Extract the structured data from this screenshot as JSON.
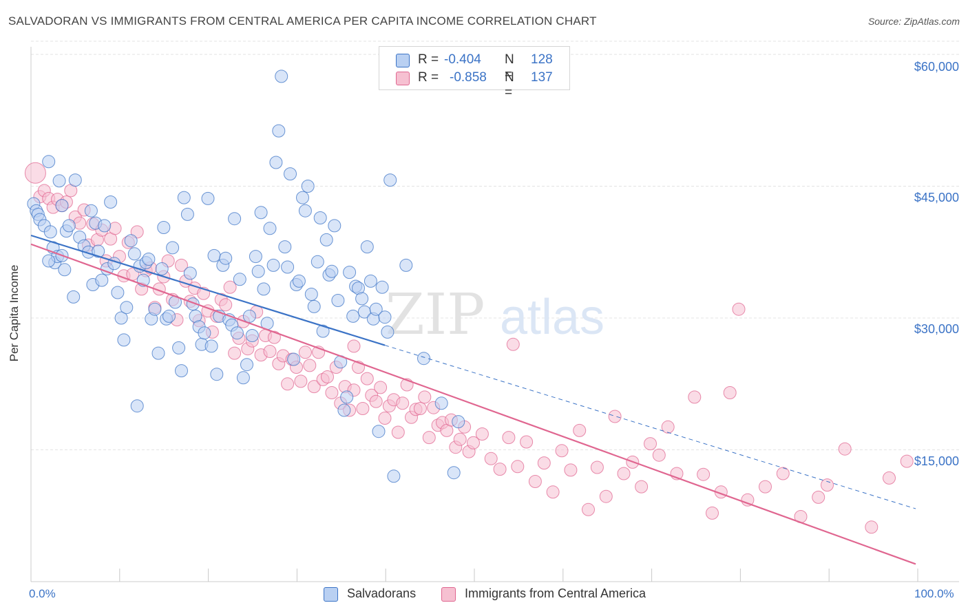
{
  "title": "SALVADORAN VS IMMIGRANTS FROM CENTRAL AMERICA PER CAPITA INCOME CORRELATION CHART",
  "source": "Source: ZipAtlas.com",
  "watermark": {
    "zip": "ZIP",
    "atlas": "atlas"
  },
  "colors": {
    "blue": "#3b73c6",
    "blue_fill": "#b9d0f2",
    "pink": "#e06690",
    "pink_fill": "#f6c0d1",
    "grid": "#e3e3e3"
  },
  "legend": {
    "r_label": "R = ",
    "n_label": "N = ",
    "blue": {
      "r": "-0.404",
      "n": "128"
    },
    "pink": {
      "r": "-0.858",
      "n": "137"
    }
  },
  "chart_data": {
    "type": "scatter",
    "title": "SALVADORAN VS IMMIGRANTS FROM CENTRAL AMERICA PER CAPITA INCOME CORRELATION CHART",
    "xlabel": "",
    "ylabel": "Per Capita Income",
    "x_tick_labels": [
      "0.0%",
      "100.0%"
    ],
    "y_tick_labels": [
      "$15,000",
      "$30,000",
      "$45,000",
      "$60,000"
    ],
    "y_ticks": [
      15000,
      30000,
      45000,
      60000
    ],
    "xlim": [
      0,
      100
    ],
    "ylim": [
      0,
      61500
    ],
    "grid": true,
    "legend_position": "bottom",
    "series": [
      {
        "name": "Salvadorans",
        "color": "#3b73c6",
        "r": -0.404,
        "n": 128,
        "trend": {
          "solid": [
            [
              0,
              39400
            ],
            [
              40,
              26900
            ]
          ],
          "dashed": [
            [
              40,
              26900
            ],
            [
              100,
              8300
            ]
          ]
        },
        "points": [
          [
            0.3,
            43000
          ],
          [
            0.6,
            42200
          ],
          [
            0.8,
            41800
          ],
          [
            1,
            41200
          ],
          [
            1.5,
            40500
          ],
          [
            2,
            47800
          ],
          [
            2.2,
            39800
          ],
          [
            2.5,
            38000
          ],
          [
            2.7,
            36300
          ],
          [
            3,
            37000
          ],
          [
            3.2,
            45600
          ],
          [
            3.5,
            42800
          ],
          [
            3.8,
            35500
          ],
          [
            4,
            39900
          ],
          [
            4.3,
            40500
          ],
          [
            4.8,
            32400
          ],
          [
            5,
            45700
          ],
          [
            5.5,
            39200
          ],
          [
            6,
            38200
          ],
          [
            6.5,
            37500
          ],
          [
            6.8,
            42200
          ],
          [
            7,
            33800
          ],
          [
            7.3,
            40800
          ],
          [
            7.6,
            37600
          ],
          [
            8,
            34300
          ],
          [
            8.3,
            40500
          ],
          [
            8.6,
            35600
          ],
          [
            9,
            43200
          ],
          [
            9.4,
            36200
          ],
          [
            9.8,
            32900
          ],
          [
            10.2,
            30000
          ],
          [
            10.5,
            27500
          ],
          [
            10.8,
            31200
          ],
          [
            11.3,
            38800
          ],
          [
            11.7,
            37300
          ],
          [
            12,
            20000
          ],
          [
            12.3,
            35900
          ],
          [
            12.7,
            34300
          ],
          [
            13,
            36300
          ],
          [
            13.3,
            36700
          ],
          [
            13.6,
            29900
          ],
          [
            14,
            31000
          ],
          [
            14.4,
            26000
          ],
          [
            14.8,
            35600
          ],
          [
            15,
            40300
          ],
          [
            15.3,
            29900
          ],
          [
            15.6,
            30200
          ],
          [
            16,
            38000
          ],
          [
            16.3,
            31800
          ],
          [
            16.7,
            26600
          ],
          [
            17,
            24000
          ],
          [
            17.3,
            43700
          ],
          [
            17.7,
            41800
          ],
          [
            18,
            35100
          ],
          [
            18.3,
            31600
          ],
          [
            18.6,
            30200
          ],
          [
            19,
            29000
          ],
          [
            19.3,
            27000
          ],
          [
            19.6,
            28300
          ],
          [
            20,
            43600
          ],
          [
            20.4,
            26800
          ],
          [
            20.7,
            37100
          ],
          [
            21,
            23600
          ],
          [
            21.3,
            30200
          ],
          [
            21.7,
            36000
          ],
          [
            22,
            36800
          ],
          [
            22.4,
            29800
          ],
          [
            22.7,
            29200
          ],
          [
            23,
            41300
          ],
          [
            23.3,
            28300
          ],
          [
            23.6,
            34400
          ],
          [
            24,
            23200
          ],
          [
            24.4,
            24700
          ],
          [
            24.7,
            30200
          ],
          [
            25,
            28000
          ],
          [
            25.4,
            37000
          ],
          [
            25.7,
            35300
          ],
          [
            26,
            42000
          ],
          [
            26.3,
            33300
          ],
          [
            26.7,
            29400
          ],
          [
            27,
            40200
          ],
          [
            27.4,
            36000
          ],
          [
            27.7,
            47700
          ],
          [
            28,
            51300
          ],
          [
            28.3,
            57500
          ],
          [
            28.7,
            38100
          ],
          [
            29,
            35800
          ],
          [
            29.3,
            46400
          ],
          [
            29.7,
            25300
          ],
          [
            30,
            33800
          ],
          [
            30.3,
            34200
          ],
          [
            30.7,
            43700
          ],
          [
            31,
            42200
          ],
          [
            31.3,
            45000
          ],
          [
            31.7,
            32700
          ],
          [
            32,
            31300
          ],
          [
            32.4,
            36400
          ],
          [
            32.7,
            41400
          ],
          [
            33,
            28500
          ],
          [
            33.4,
            38900
          ],
          [
            33.7,
            34900
          ],
          [
            34,
            35300
          ],
          [
            34.3,
            40500
          ],
          [
            34.7,
            32000
          ],
          [
            35,
            25000
          ],
          [
            35.4,
            19500
          ],
          [
            35.7,
            21000
          ],
          [
            36,
            35200
          ],
          [
            36.4,
            30200
          ],
          [
            36.7,
            33600
          ],
          [
            37,
            33400
          ],
          [
            37.4,
            32200
          ],
          [
            37.7,
            30700
          ],
          [
            38,
            38100
          ],
          [
            38.4,
            34200
          ],
          [
            38.7,
            29900
          ],
          [
            39,
            31000
          ],
          [
            39.3,
            17100
          ],
          [
            39.7,
            33500
          ],
          [
            40,
            30100
          ],
          [
            40.3,
            28400
          ],
          [
            41,
            12000
          ],
          [
            40.6,
            45700
          ],
          [
            42.4,
            36000
          ],
          [
            44.4,
            25400
          ],
          [
            46.4,
            20300
          ],
          [
            47.8,
            12400
          ],
          [
            48.3,
            18200
          ],
          [
            3.5,
            37100
          ],
          [
            2,
            36500
          ]
        ]
      },
      {
        "name": "Immigrants from Central America",
        "color": "#e06690",
        "r": -0.858,
        "n": 137,
        "trend": {
          "solid": [
            [
              0,
              38400
            ],
            [
              100,
              2000
            ]
          ]
        },
        "points": [
          [
            0.5,
            46500
          ],
          [
            1,
            43800
          ],
          [
            1.5,
            44500
          ],
          [
            2,
            43600
          ],
          [
            2.5,
            42600
          ],
          [
            3,
            43500
          ],
          [
            3.5,
            42800
          ],
          [
            4,
            43200
          ],
          [
            4.5,
            44500
          ],
          [
            5,
            41500
          ],
          [
            5.5,
            40800
          ],
          [
            6,
            42300
          ],
          [
            6.5,
            38300
          ],
          [
            7,
            40700
          ],
          [
            7.5,
            38900
          ],
          [
            8,
            40000
          ],
          [
            8.5,
            36500
          ],
          [
            9,
            39000
          ],
          [
            9.5,
            40200
          ],
          [
            10,
            37000
          ],
          [
            10.5,
            34800
          ],
          [
            11,
            38600
          ],
          [
            11.5,
            35000
          ],
          [
            12,
            39800
          ],
          [
            12.5,
            33300
          ],
          [
            13,
            35400
          ],
          [
            13.5,
            35700
          ],
          [
            14,
            31200
          ],
          [
            14.5,
            33300
          ],
          [
            15,
            34700
          ],
          [
            15.5,
            36500
          ],
          [
            16,
            32100
          ],
          [
            16.5,
            29800
          ],
          [
            17,
            36000
          ],
          [
            17.5,
            34200
          ],
          [
            18,
            31900
          ],
          [
            18.5,
            33400
          ],
          [
            19,
            29700
          ],
          [
            19.5,
            32800
          ],
          [
            20,
            30800
          ],
          [
            20.5,
            28400
          ],
          [
            21,
            30200
          ],
          [
            21.5,
            32100
          ],
          [
            22,
            31500
          ],
          [
            22.5,
            33500
          ],
          [
            23,
            26000
          ],
          [
            23.5,
            27700
          ],
          [
            24,
            29600
          ],
          [
            24.5,
            26500
          ],
          [
            25,
            27400
          ],
          [
            25.5,
            30700
          ],
          [
            26,
            25800
          ],
          [
            26.5,
            28000
          ],
          [
            27,
            26200
          ],
          [
            27.5,
            27800
          ],
          [
            28,
            24800
          ],
          [
            28.5,
            25700
          ],
          [
            29,
            22500
          ],
          [
            29.5,
            25300
          ],
          [
            30,
            24400
          ],
          [
            30.5,
            22800
          ],
          [
            31,
            26100
          ],
          [
            31.5,
            24600
          ],
          [
            32,
            22200
          ],
          [
            32.5,
            26100
          ],
          [
            33,
            23000
          ],
          [
            33.5,
            23300
          ],
          [
            34,
            21500
          ],
          [
            34.5,
            24400
          ],
          [
            35,
            20300
          ],
          [
            35.5,
            22200
          ],
          [
            36,
            19500
          ],
          [
            36.5,
            21800
          ],
          [
            37,
            24400
          ],
          [
            37.5,
            19700
          ],
          [
            38,
            23100
          ],
          [
            38.5,
            21200
          ],
          [
            39,
            20500
          ],
          [
            39.5,
            22100
          ],
          [
            40,
            18600
          ],
          [
            40.5,
            20000
          ],
          [
            41,
            20700
          ],
          [
            41.5,
            17000
          ],
          [
            42,
            20300
          ],
          [
            42.5,
            22400
          ],
          [
            43,
            18700
          ],
          [
            43.5,
            19600
          ],
          [
            44,
            19700
          ],
          [
            44.5,
            21000
          ],
          [
            45,
            16400
          ],
          [
            45.5,
            19800
          ],
          [
            46,
            17800
          ],
          [
            46.5,
            18100
          ],
          [
            47,
            17200
          ],
          [
            47.5,
            18400
          ],
          [
            48,
            15300
          ],
          [
            48.5,
            16200
          ],
          [
            49,
            17600
          ],
          [
            49.5,
            14800
          ],
          [
            50,
            15800
          ],
          [
            51,
            16800
          ],
          [
            52,
            14000
          ],
          [
            53,
            12800
          ],
          [
            54,
            16400
          ],
          [
            55,
            13100
          ],
          [
            56,
            15900
          ],
          [
            57,
            11400
          ],
          [
            58,
            13500
          ],
          [
            59,
            10200
          ],
          [
            60,
            14900
          ],
          [
            61,
            12700
          ],
          [
            62,
            17200
          ],
          [
            63,
            8200
          ],
          [
            64,
            13000
          ],
          [
            65,
            9700
          ],
          [
            66,
            18800
          ],
          [
            67,
            12300
          ],
          [
            68,
            13600
          ],
          [
            69,
            10800
          ],
          [
            70,
            15700
          ],
          [
            71,
            14400
          ],
          [
            72,
            17600
          ],
          [
            73,
            12300
          ],
          [
            75,
            21000
          ],
          [
            76,
            12200
          ],
          [
            77,
            7800
          ],
          [
            78,
            10200
          ],
          [
            79,
            21500
          ],
          [
            80,
            31000
          ],
          [
            81,
            9300
          ],
          [
            83,
            10800
          ],
          [
            85,
            12300
          ],
          [
            87,
            7400
          ],
          [
            89,
            9600
          ],
          [
            90,
            11000
          ],
          [
            92,
            15100
          ],
          [
            95,
            6200
          ],
          [
            97,
            11800
          ],
          [
            99,
            13700
          ],
          [
            54.5,
            27000
          ],
          [
            36.5,
            26800
          ]
        ]
      }
    ]
  }
}
